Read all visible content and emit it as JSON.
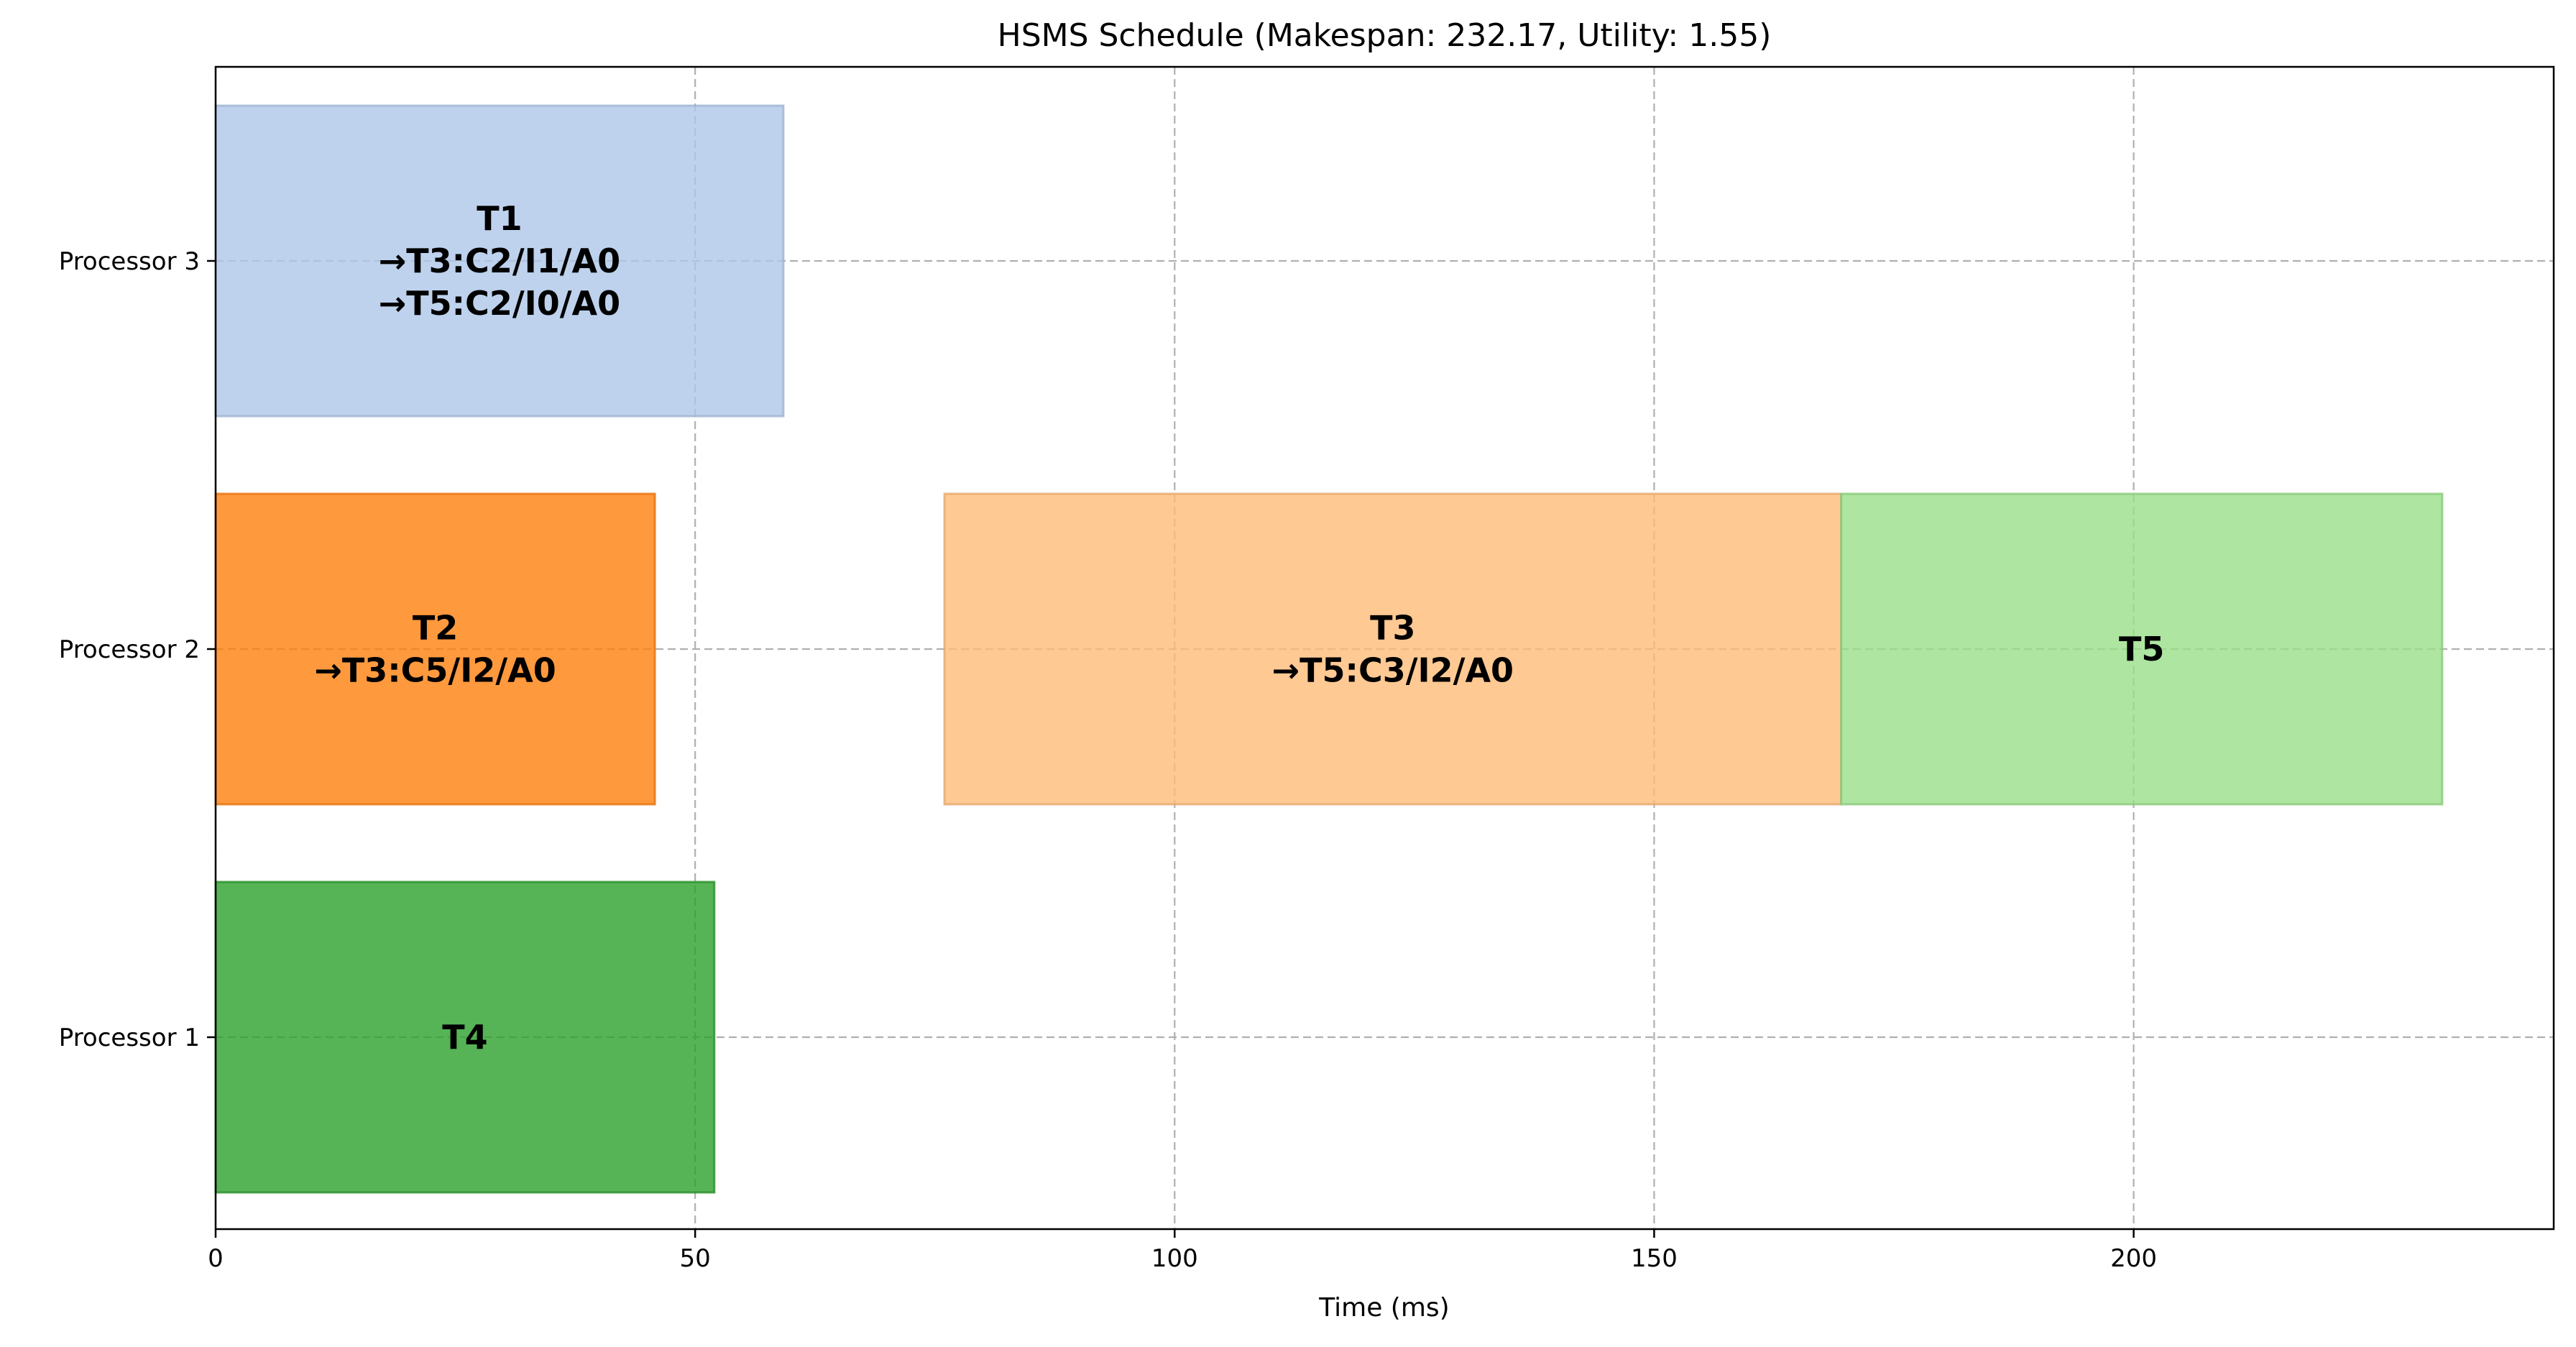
{
  "chart_data": {
    "type": "gantt",
    "title": "HSMS Schedule (Makespan: 232.17, Utility: 1.55)",
    "xlabel": "Time (ms)",
    "ylabel": "",
    "xlim": [
      0,
      243.8
    ],
    "xticks": [
      0,
      50,
      100,
      150,
      200
    ],
    "grid": true,
    "processors": [
      "Processor 1",
      "Processor 2",
      "Processor 3"
    ],
    "tasks": [
      {
        "name": "T1",
        "processor": "Processor 3",
        "start": 0,
        "end": 59.2,
        "color": "#aec7e8",
        "labels": [
          "T1",
          "→T3:C2/I1/A0",
          "→T5:C2/I0/A0"
        ]
      },
      {
        "name": "T2",
        "processor": "Processor 2",
        "start": 0,
        "end": 45.8,
        "color": "#ff7f0e",
        "labels": [
          "T2",
          "→T3:C5/I2/A0"
        ]
      },
      {
        "name": "T3",
        "processor": "Processor 2",
        "start": 76.0,
        "end": 169.5,
        "color": "#ffbb78",
        "labels": [
          "T3",
          "→T5:C3/I2/A0"
        ]
      },
      {
        "name": "T5",
        "processor": "Processor 2",
        "start": 169.5,
        "end": 232.17,
        "color": "#98df8a",
        "labels": [
          "T5"
        ]
      },
      {
        "name": "T4",
        "processor": "Processor 1",
        "start": 0,
        "end": 52.0,
        "color": "#2ca02c",
        "labels": [
          "T4"
        ]
      }
    ]
  }
}
